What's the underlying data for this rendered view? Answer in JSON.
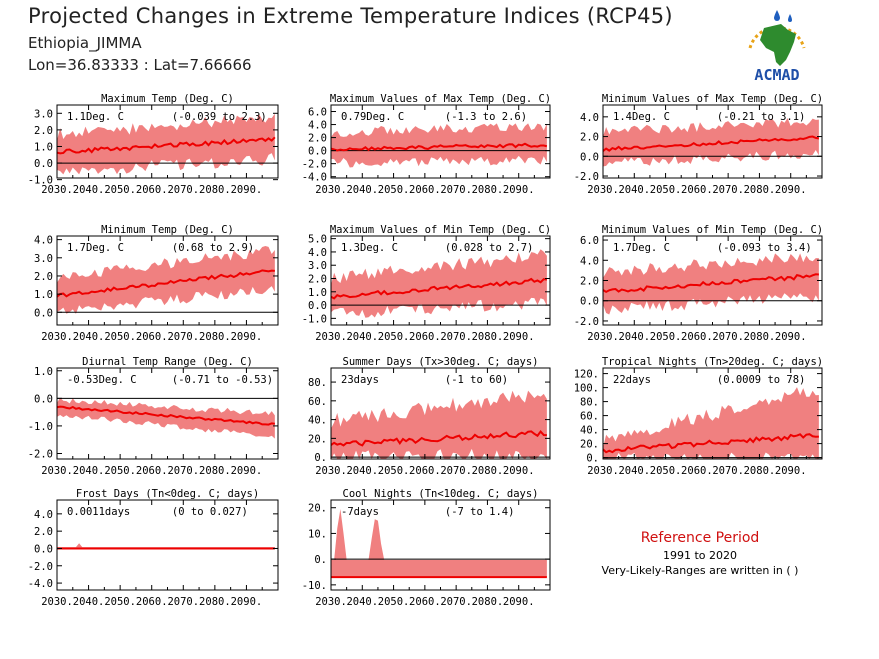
{
  "header": {
    "title": "Projected Changes in Extreme Temperature Indices (RCP45)",
    "location": "Ethiopia_JIMMA",
    "coords": "Lon=36.83333 : Lat=7.66666"
  },
  "logo": {
    "text": "ACMAD",
    "colors": {
      "africa": "#2e8b2e",
      "rays": "#e8a317",
      "drops": "#1f5fbf",
      "text": "#1f4fa8"
    }
  },
  "reference": {
    "heading": "Reference Period",
    "period": "1991 to 2020",
    "note": "Very-Likely-Ranges are written in ( )"
  },
  "colors": {
    "band": "#f08080",
    "line": "#ee0000",
    "zero": "#000000"
  },
  "x_tick_labels": [
    "2030.",
    "2040.",
    "2050.",
    "2060.",
    "2070.",
    "2080.",
    "2090."
  ],
  "chart_data": [
    {
      "type": "area",
      "title": "Maximum Temp (Deg. C)",
      "change": "1.1Deg. C",
      "range": "(-0.039 to 2.3)",
      "x": [
        2030,
        2100
      ],
      "ylim": [
        -0.9,
        3.5
      ],
      "yticks": [
        "3.0",
        "2.0",
        "1.0",
        "0.0",
        "-1.0"
      ],
      "mean_start": 0.65,
      "mean_end": 1.45,
      "band_low_start": -0.4,
      "band_low_end": 0.4,
      "band_high_start": 1.6,
      "band_high_end": 2.6
    },
    {
      "type": "area",
      "title": "Maximum Values of Max Temp (Deg. C)",
      "change": "0.79Deg. C",
      "range": "(-1.3 to 2.6)",
      "x": [
        2030,
        2100
      ],
      "ylim": [
        -4.2,
        7.0
      ],
      "yticks": [
        "6.0",
        "4.0",
        "2.0",
        "0.0",
        "-2.0",
        "-4.0"
      ],
      "mean_start": 0.2,
      "mean_end": 0.9,
      "band_low_start": -1.6,
      "band_low_end": -1.2,
      "band_high_start": 2.5,
      "band_high_end": 3.5
    },
    {
      "type": "area",
      "title": "Minimum Values of Max Temp (Deg. C)",
      "change": "1.4Deg. C",
      "range": "(-0.21 to 3.1)",
      "x": [
        2030,
        2100
      ],
      "ylim": [
        -2.2,
        5.2
      ],
      "yticks": [
        "4.0",
        "2.0",
        "0.0",
        "-2.0"
      ],
      "mean_start": 0.7,
      "mean_end": 1.9,
      "band_low_start": -0.5,
      "band_low_end": 0.5,
      "band_high_start": 2.3,
      "band_high_end": 3.4
    },
    {
      "type": "area",
      "title": "Minimum Temp (Deg. C)",
      "change": "1.7Deg. C",
      "range": "(0.68 to 2.9)",
      "x": [
        2030,
        2100
      ],
      "ylim": [
        -0.7,
        4.2
      ],
      "yticks": [
        "4.0",
        "3.0",
        "2.0",
        "1.0",
        "0.0"
      ],
      "mean_start": 0.9,
      "mean_end": 2.3,
      "band_low_start": 0.2,
      "band_low_end": 1.4,
      "band_high_start": 1.8,
      "band_high_end": 3.3
    },
    {
      "type": "area",
      "title": "Maximum Values of Min Temp (Deg. C)",
      "change": "1.3Deg. C",
      "range": "(0.028 to 2.7)",
      "x": [
        2030,
        2100
      ],
      "ylim": [
        -1.5,
        5.2
      ],
      "yticks": [
        "5.0",
        "4.0",
        "3.0",
        "2.0",
        "1.0",
        "0.0",
        "-1.0"
      ],
      "mean_start": 0.6,
      "mean_end": 1.9,
      "band_low_start": -0.5,
      "band_low_end": 0.4,
      "band_high_start": 1.8,
      "band_high_end": 3.6
    },
    {
      "type": "area",
      "title": "Minimum Values of Min Temp (Deg. C)",
      "change": "1.7Deg. C",
      "range": "(-0.093 to 3.4)",
      "x": [
        2030,
        2100
      ],
      "ylim": [
        -2.4,
        6.4
      ],
      "yticks": [
        "6.0",
        "4.0",
        "2.0",
        "0.0",
        "-2.0"
      ],
      "mean_start": 0.9,
      "mean_end": 2.5,
      "band_low_start": -0.6,
      "band_low_end": 0.6,
      "band_high_start": 2.6,
      "band_high_end": 4.2
    },
    {
      "type": "area",
      "title": "Diurnal Temp Range (Deg. C)",
      "change": "-0.53Deg. C",
      "range": "(-0.71 to -0.53)",
      "x": [
        2030,
        2100
      ],
      "ylim": [
        -2.2,
        1.1
      ],
      "yticks": [
        "1.0",
        "0.0",
        "-1.0",
        "-2.0"
      ],
      "mean_start": -0.3,
      "mean_end": -0.95,
      "band_low_start": -0.55,
      "band_low_end": -1.35,
      "band_high_start": -0.1,
      "band_high_end": -0.6
    },
    {
      "type": "area",
      "title": "Summer Days (Tx>30deg. C; days)",
      "change": "23days",
      "range": "(-1 to 60)",
      "x": [
        2030,
        2100
      ],
      "ylim": [
        -2,
        95
      ],
      "yticks": [
        "80.",
        "60.",
        "40.",
        "20.",
        "0."
      ],
      "mean_start": 13,
      "mean_end": 26,
      "band_low_start": 2,
      "band_low_end": 5,
      "band_high_start": 35,
      "band_high_end": 65
    },
    {
      "type": "area",
      "title": "Tropical Nights (Tn>20deg. C; days)",
      "change": "22days",
      "range": "(0.0009 to 78)",
      "x": [
        2030,
        2100
      ],
      "ylim": [
        -2,
        128
      ],
      "yticks": [
        "120.",
        "100.",
        "80.",
        "60.",
        "40.",
        "20.",
        "0."
      ],
      "mean_start": 10,
      "mean_end": 32,
      "band_low_start": 1,
      "band_low_end": 2,
      "band_high_start": 20,
      "band_high_end": 95
    },
    {
      "type": "area",
      "title": "Frost Days (Tn<0deg. C; days)",
      "change": "0.0011days",
      "range": "(0 to 0.027)",
      "x": [
        2030,
        2100
      ],
      "ylim": [
        -4.8,
        5.6
      ],
      "yticks": [
        "4.0",
        "2.0",
        "0.0",
        "-2.0",
        "-4.0"
      ],
      "mean_start": 0.0,
      "mean_end": 0.0,
      "band_low_start": 0.0,
      "band_low_end": 0.0,
      "band_high_start": 0.15,
      "band_high_end": 0.1
    },
    {
      "type": "area",
      "title": "Cool Nights (Tn<10deg. C; days)",
      "change": "-7days",
      "range": "(-7 to 1.4)",
      "x": [
        2030,
        2100
      ],
      "ylim": [
        -12,
        23
      ],
      "yticks": [
        "20.",
        "10.",
        "0.",
        "-10."
      ],
      "mean_start": -7,
      "mean_end": -7,
      "band_low_start": -7,
      "band_low_end": -7,
      "band_high_start": -0.5,
      "band_high_end": -0.5
    }
  ]
}
